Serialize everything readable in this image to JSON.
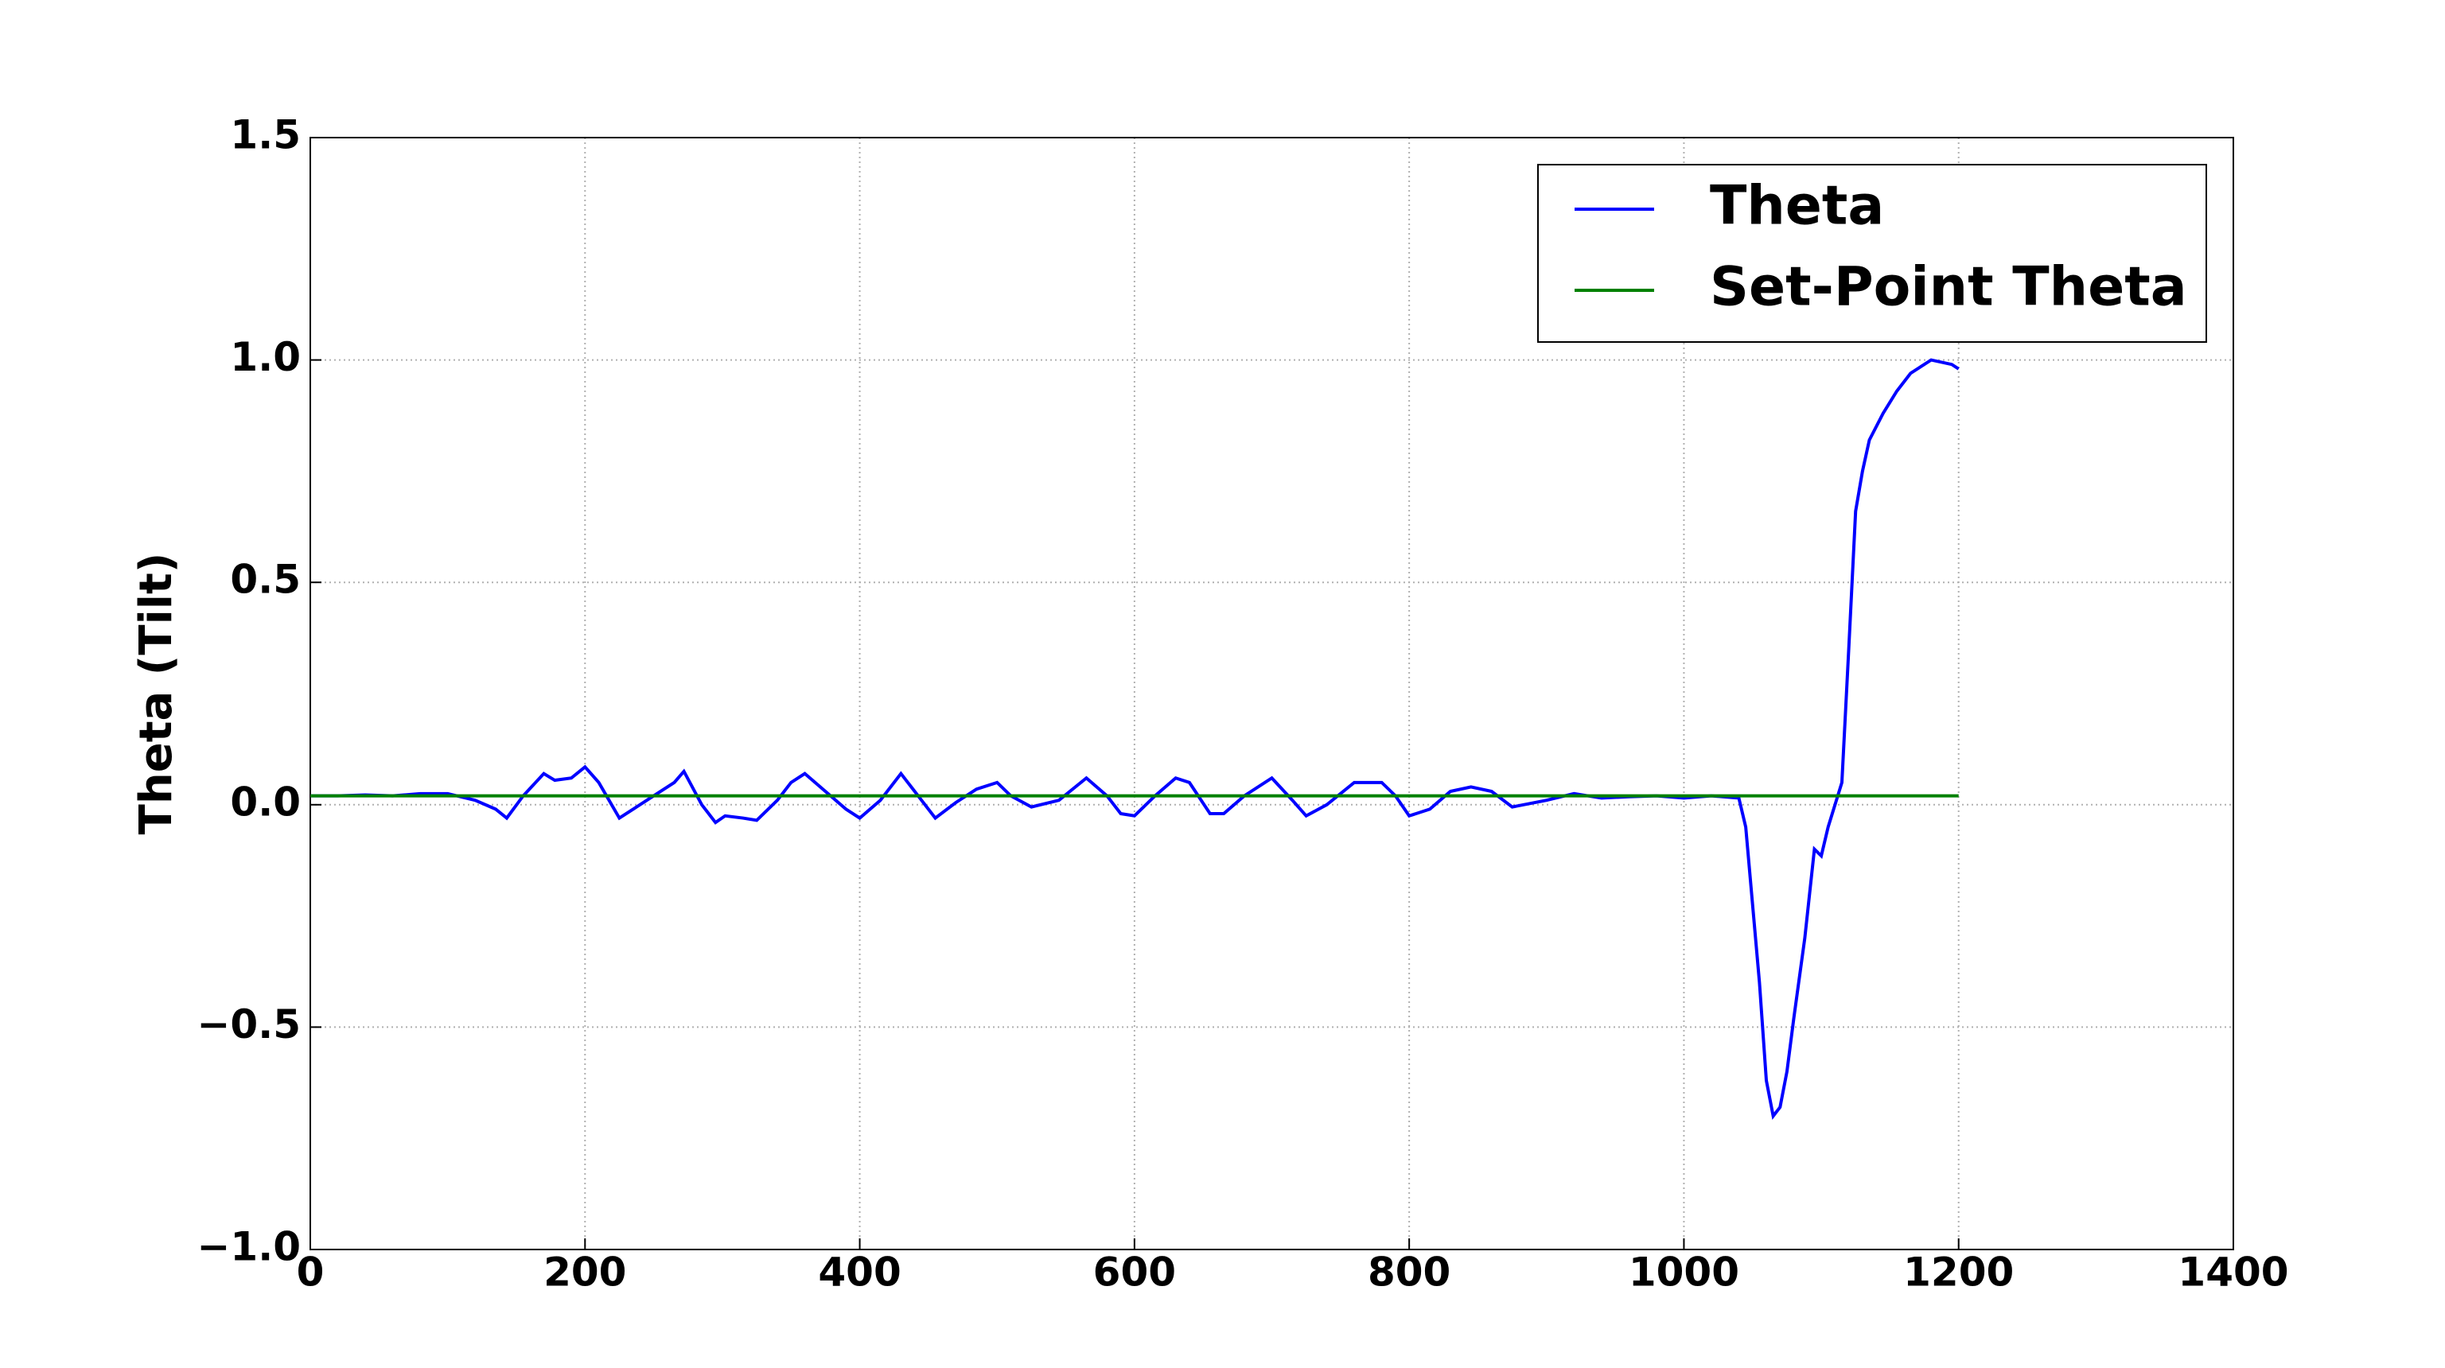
{
  "chart_data": {
    "type": "line",
    "ylabel": "Theta (Tilt)",
    "xlim": [
      0,
      1400
    ],
    "xticks": [
      0,
      200,
      400,
      600,
      800,
      1000,
      1200,
      1400
    ],
    "ylim": [
      -1.0,
      1.5
    ],
    "yticks": [
      {
        "value": -1.0,
        "label": "−1.0"
      },
      {
        "value": -0.5,
        "label": "−0.5"
      },
      {
        "value": 0.0,
        "label": "0.0"
      },
      {
        "value": 0.5,
        "label": "0.5"
      },
      {
        "value": 1.0,
        "label": "1.0"
      },
      {
        "value": 1.5,
        "label": "1.5"
      }
    ],
    "grid": true,
    "legend": "upper right",
    "series": [
      {
        "name": "Theta",
        "color": "#0000ff",
        "x": [
          0,
          20,
          40,
          60,
          80,
          100,
          120,
          135,
          143,
          155,
          170,
          178,
          190,
          200,
          210,
          225,
          235,
          250,
          265,
          272,
          285,
          295,
          302,
          315,
          325,
          340,
          350,
          360,
          375,
          390,
          400,
          415,
          430,
          445,
          455,
          470,
          485,
          500,
          510,
          525,
          545,
          565,
          580,
          590,
          600,
          615,
          630,
          640,
          655,
          665,
          680,
          700,
          715,
          725,
          740,
          760,
          780,
          790,
          800,
          815,
          830,
          845,
          860,
          875,
          900,
          920,
          940,
          960,
          980,
          1000,
          1020,
          1040,
          1045,
          1055,
          1060,
          1065,
          1070,
          1075,
          1080,
          1088,
          1095,
          1100,
          1105,
          1110,
          1115,
          1120,
          1125,
          1130,
          1135,
          1145,
          1155,
          1165,
          1180,
          1195,
          1200
        ],
        "values": [
          0.02,
          0.02,
          0.022,
          0.02,
          0.025,
          0.025,
          0.01,
          -0.01,
          -0.03,
          0.02,
          0.07,
          0.055,
          0.06,
          0.085,
          0.05,
          -0.03,
          -0.01,
          0.02,
          0.05,
          0.075,
          0.0,
          -0.04,
          -0.025,
          -0.03,
          -0.035,
          0.01,
          0.05,
          0.07,
          0.03,
          -0.01,
          -0.03,
          0.01,
          0.07,
          0.01,
          -0.03,
          0.005,
          0.035,
          0.05,
          0.02,
          -0.005,
          0.01,
          0.06,
          0.02,
          -0.02,
          -0.025,
          0.02,
          0.06,
          0.05,
          -0.02,
          -0.02,
          0.02,
          0.06,
          0.01,
          -0.025,
          0.0,
          0.05,
          0.05,
          0.02,
          -0.025,
          -0.01,
          0.03,
          0.04,
          0.03,
          -0.005,
          0.01,
          0.025,
          0.015,
          0.018,
          0.02,
          0.015,
          0.02,
          0.015,
          -0.05,
          -0.4,
          -0.62,
          -0.7,
          -0.68,
          -0.6,
          -0.48,
          -0.3,
          -0.1,
          -0.115,
          -0.05,
          0.0,
          0.05,
          0.35,
          0.66,
          0.75,
          0.82,
          0.88,
          0.93,
          0.97,
          1.0,
          0.99,
          0.98
        ]
      },
      {
        "name": "Set-Point Theta",
        "color": "#008000",
        "x": [
          0,
          1200
        ],
        "values": [
          0.02,
          0.02
        ]
      }
    ]
  }
}
